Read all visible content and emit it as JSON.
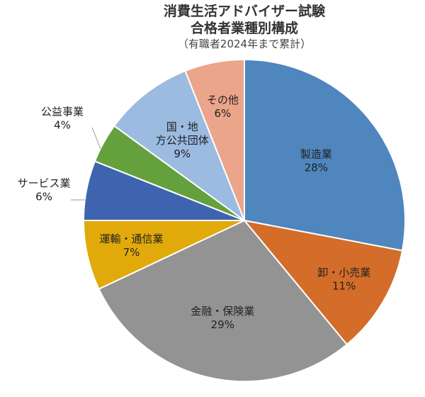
{
  "chart_data": {
    "type": "pie",
    "title": "消費生活アドバイザー試験",
    "subtitle": "合格者業種別構成",
    "note": "（有職者2024年まで累計）",
    "slices": [
      {
        "label": "製造業",
        "value": 28,
        "pct": "28%",
        "color": "#4F86BE"
      },
      {
        "label": "卸・小売業",
        "value": 11,
        "pct": "11%",
        "color": "#D36D29"
      },
      {
        "label": "金融・保険業",
        "value": 29,
        "pct": "29%",
        "color": "#939393"
      },
      {
        "label": "運輸・通信業",
        "value": 7,
        "pct": "7%",
        "color": "#E1AA0A"
      },
      {
        "label": "サービス業",
        "value": 6,
        "pct": "6%",
        "color": "#3F64AF"
      },
      {
        "label": "公益事業",
        "value": 4,
        "pct": "4%",
        "color": "#64A03C"
      },
      {
        "label": "国・地方公共団体",
        "value": 9,
        "pct": "9%",
        "color": "#9BBBE1"
      },
      {
        "label": "その他",
        "value": 6,
        "pct": "6%",
        "color": "#EBA58A"
      }
    ]
  }
}
